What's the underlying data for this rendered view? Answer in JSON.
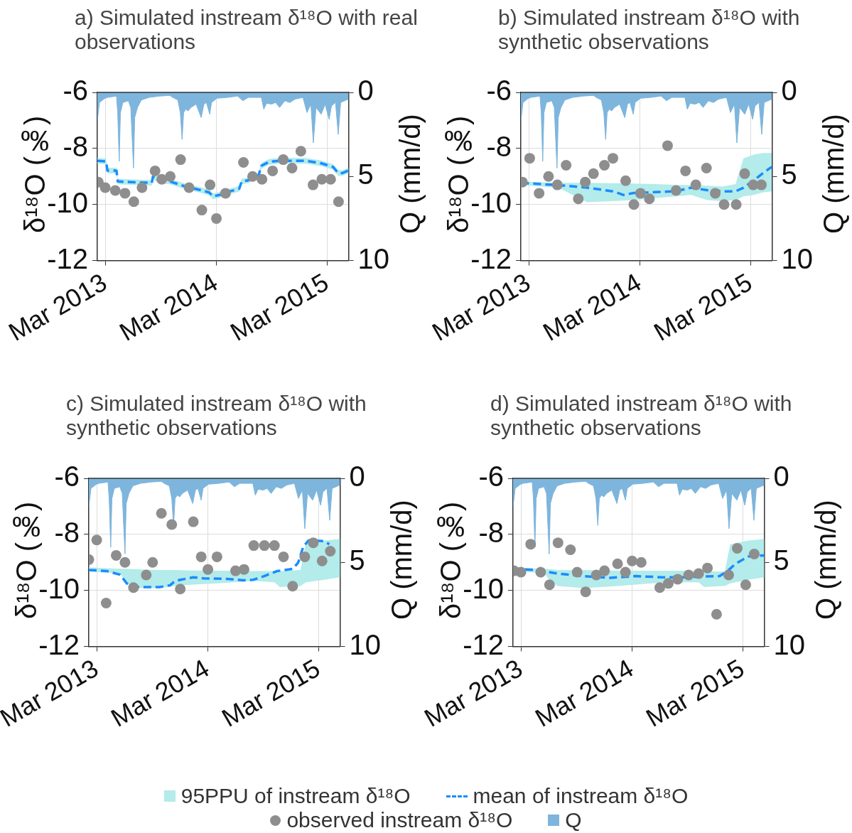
{
  "chart_data": [
    {
      "type": "line",
      "title": "a) Simulated instream δ¹⁸O with real observations",
      "ylabel": "δ¹⁸O (‰)",
      "y2label": "Q (mm/d)",
      "xlim": [
        "2013-02-03",
        "2015-05-11"
      ],
      "xticks": [
        {
          "value": "2013-03-01",
          "label": "Mar 2013"
        },
        {
          "value": "2014-03-01",
          "label": "Mar 2014"
        },
        {
          "value": "2015-03-01",
          "label": "Mar 2015"
        }
      ],
      "ylim": [
        -12,
        -6
      ],
      "yticks": [
        -12,
        -10,
        -8,
        -6
      ],
      "y2lim": [
        10,
        0
      ],
      "y2ticks": [
        0,
        5,
        10
      ],
      "grid": true,
      "series": [
        {
          "type": "area",
          "color": "#b3ecea",
          "values": [
            null,
            null,
            null,
            null,
            null,
            null,
            null,
            null,
            null,
            null,
            null,
            null,
            null,
            null,
            null,
            null,
            null,
            null,
            null,
            null,
            null,
            null,
            null,
            null,
            null,
            null,
            null,
            null,
            null
          ],
          "x": [
            "2013-02-03",
            "2013-03-04",
            "2013-03-08",
            "2013-04-07",
            "2013-04-11",
            "2013-08-01",
            "2013-08-05",
            "2013-08-27",
            "2013-09-30",
            "2013-11-21",
            "2014-01-11",
            "2014-02-06",
            "2014-02-19",
            "2014-03-12",
            "2014-04-16",
            "2014-05-16",
            "2014-05-24",
            "2014-06-15",
            "2014-07-19",
            "2014-07-28",
            "2014-08-22",
            "2014-09-26",
            "2014-11-08",
            "2014-12-21",
            "2015-02-10",
            "2015-03-21",
            "2015-04-07",
            "2015-04-20",
            "2015-05-11"
          ],
          "upper": [
            -8.34,
            -8.36,
            -8.69,
            -8.69,
            -9.08,
            -9.13,
            -8.91,
            -9.04,
            -9.08,
            -9.26,
            -9.39,
            -9.47,
            -9.61,
            -9.56,
            -9.43,
            -9.34,
            -9.08,
            -9.04,
            -8.86,
            -8.52,
            -8.38,
            -8.34,
            -8.34,
            -8.34,
            -8.43,
            -8.56,
            -8.78,
            -8.78,
            -8.69
          ],
          "lower": [
            -8.54,
            -8.56,
            -8.89,
            -8.89,
            -9.28,
            -9.33,
            -9.11,
            -9.24,
            -9.28,
            -9.46,
            -9.59,
            -9.67,
            -9.81,
            -9.76,
            -9.63,
            -9.54,
            -9.28,
            -9.24,
            -9.06,
            -8.72,
            -8.58,
            -8.54,
            -8.54,
            -8.54,
            -8.63,
            -8.76,
            -8.98,
            -8.98,
            -8.89
          ]
        },
        {
          "type": "line",
          "color": "#1a8cff",
          "line_style": "dashed",
          "x": [
            "2013-02-03",
            "2013-03-04",
            "2013-03-08",
            "2013-04-07",
            "2013-04-11",
            "2013-08-01",
            "2013-08-05",
            "2013-08-27",
            "2013-09-30",
            "2013-11-21",
            "2014-01-11",
            "2014-02-06",
            "2014-02-19",
            "2014-03-12",
            "2014-04-16",
            "2014-05-16",
            "2014-05-24",
            "2014-06-15",
            "2014-07-19",
            "2014-07-28",
            "2014-08-22",
            "2014-09-26",
            "2014-11-08",
            "2014-12-21",
            "2015-02-10",
            "2015-03-21",
            "2015-04-07",
            "2015-04-20",
            "2015-05-11"
          ],
          "values": [
            -8.44,
            -8.46,
            -8.79,
            -8.79,
            -9.18,
            -9.23,
            -9.01,
            -9.14,
            -9.18,
            -9.36,
            -9.49,
            -9.57,
            -9.71,
            -9.66,
            -9.53,
            -9.44,
            -9.18,
            -9.14,
            -8.96,
            -8.62,
            -8.48,
            -8.44,
            -8.44,
            -8.44,
            -8.53,
            -8.66,
            -8.88,
            -8.88,
            -8.79
          ]
        },
        {
          "type": "scatter",
          "color": "#8e8e8e",
          "marker": "circle",
          "x": [
            "2013-02-06",
            "2013-03-01",
            "2013-04-03",
            "2013-05-05",
            "2013-06-03",
            "2013-06-30",
            "2013-08-12",
            "2013-09-03",
            "2013-10-01",
            "2013-11-04",
            "2013-12-02",
            "2014-01-13",
            "2014-02-09",
            "2014-03-02",
            "2014-04-01",
            "2014-05-30",
            "2014-06-29",
            "2014-07-30",
            "2014-09-03",
            "2014-10-08",
            "2014-11-06",
            "2014-12-05",
            "2015-01-14",
            "2015-02-12",
            "2015-03-13",
            "2015-04-08"
          ],
          "values": [
            -9.2,
            -9.4,
            -9.5,
            -9.6,
            -9.9,
            -9.4,
            -8.8,
            -9.1,
            -9.0,
            -8.4,
            -9.4,
            -10.2,
            -9.3,
            -10.5,
            -9.6,
            -8.5,
            -9.0,
            -9.1,
            -8.8,
            -8.4,
            -8.7,
            -8.1,
            -9.3,
            -9.1,
            -9.1,
            -9.9
          ]
        },
        {
          "type": "area",
          "axis": "y2",
          "color": "#7db5dd",
          "x": [
            "2013-02-03",
            "2013-02-10",
            "2013-02-27",
            "2013-03-08",
            "2013-04-07",
            "2013-04-11",
            "2013-04-16",
            "2013-04-20",
            "2013-04-28",
            "2013-05-16",
            "2013-05-24",
            "2013-06-02",
            "2013-06-06",
            "2013-06-15",
            "2013-06-28",
            "2013-07-23",
            "2013-08-27",
            "2013-09-30",
            "2013-10-09",
            "2013-10-26",
            "2013-11-03",
            "2013-11-09",
            "2013-11-14",
            "2013-11-21",
            "2013-11-29",
            "2013-12-08",
            "2013-12-25",
            "2014-01-11",
            "2014-01-20",
            "2014-01-28",
            "2014-02-08",
            "2014-02-14",
            "2014-03-04",
            "2014-04-07",
            "2014-05-11",
            "2014-05-28",
            "2014-06-15",
            "2014-07-28",
            "2014-08-05",
            "2014-08-14",
            "2014-08-31",
            "2014-09-13",
            "2014-09-26",
            "2014-10-13",
            "2014-10-30",
            "2014-11-16",
            "2014-12-12",
            "2014-12-25",
            "2015-01-07",
            "2015-01-15",
            "2015-01-24",
            "2015-02-10",
            "2015-02-23",
            "2015-03-08",
            "2015-03-16",
            "2015-03-29",
            "2015-04-07",
            "2015-04-15",
            "2015-04-28",
            "2015-05-11"
          ],
          "values": [
            1.7,
            0.6,
            0.36,
            0.3,
            0.22,
            1.2,
            4.1,
            1.2,
            0.6,
            0.5,
            0.9,
            4.5,
            1.5,
            0.9,
            0.45,
            0.3,
            0.22,
            0.18,
            0.3,
            0.45,
            1.2,
            2.8,
            1.2,
            1.0,
            1.1,
            0.9,
            0.7,
            1.5,
            0.7,
            0.6,
            1.3,
            0.6,
            0.35,
            0.3,
            0.22,
            0.5,
            0.3,
            0.3,
            1.0,
            0.65,
            0.7,
            0.6,
            0.9,
            0.5,
            0.6,
            0.4,
            0.3,
            1.2,
            0.7,
            3.0,
            0.9,
            1.3,
            0.7,
            1.6,
            0.8,
            0.6,
            2.5,
            0.6,
            0.5,
            0.4
          ]
        }
      ]
    },
    {
      "type": "line",
      "title": "b) Simulated instream δ¹⁸O with synthetic observations",
      "ylabel": "δ¹⁸O (‰)",
      "y2label": "Q (mm/d)",
      "xlim": [
        "2013-02-03",
        "2015-05-11"
      ],
      "xticks": [
        {
          "value": "2013-03-01",
          "label": "Mar 2013"
        },
        {
          "value": "2014-03-01",
          "label": "Mar 2014"
        },
        {
          "value": "2015-03-01",
          "label": "Mar 2015"
        }
      ],
      "ylim": [
        -12,
        -6
      ],
      "yticks": [
        -12,
        -10,
        -8,
        -6
      ],
      "y2lim": [
        10,
        0
      ],
      "y2ticks": [
        0,
        5,
        10
      ],
      "grid": true,
      "series": [
        {
          "type": "area",
          "color": "#b3ecea",
          "values": [
            null,
            null,
            null,
            null,
            null,
            null,
            null,
            null,
            null,
            null,
            null,
            null,
            null,
            null,
            null,
            null
          ],
          "x": [
            "2013-02-04",
            "2013-06-06",
            "2013-09-09",
            "2013-12-03",
            "2014-01-07",
            "2014-02-10",
            "2014-04-20",
            "2014-06-28",
            "2014-08-18",
            "2014-10-09",
            "2014-11-29",
            "2015-01-11",
            "2015-02-06",
            "2015-03-12",
            "2015-04-11",
            "2015-05-10"
          ],
          "upper": [
            -9.18,
            -9.23,
            -9.23,
            -9.24,
            -9.24,
            -9.25,
            -9.27,
            -9.3,
            -9.31,
            -9.33,
            -9.36,
            -9.27,
            -8.35,
            -8.22,
            -8.16,
            -8.16
          ],
          "lower": [
            -9.31,
            -9.4,
            -9.92,
            -9.88,
            -9.86,
            -9.84,
            -9.77,
            -9.71,
            -9.66,
            -9.84,
            -9.88,
            -9.84,
            -9.71,
            -9.66,
            -9.57,
            -9.53
          ]
        },
        {
          "type": "line",
          "color": "#1a8cff",
          "line_style": "dashed",
          "x": [
            "2013-02-04",
            "2013-06-06",
            "2013-09-09",
            "2013-12-03",
            "2014-01-07",
            "2014-02-10",
            "2014-04-20",
            "2014-06-28",
            "2014-08-18",
            "2014-10-09",
            "2014-11-29",
            "2015-01-11",
            "2015-02-06",
            "2015-03-12",
            "2015-04-11",
            "2015-05-10"
          ],
          "values": [
            -9.23,
            -9.31,
            -9.4,
            -9.53,
            -9.66,
            -9.59,
            -9.56,
            -9.53,
            -9.4,
            -9.49,
            -9.53,
            -9.53,
            -9.4,
            -9.14,
            -8.88,
            -8.66
          ]
        },
        {
          "type": "scatter",
          "color": "#8e8e8e",
          "marker": "circle",
          "x": [
            "2013-02-08",
            "2013-03-04",
            "2013-04-04",
            "2013-05-05",
            "2013-06-03",
            "2013-07-02",
            "2013-08-11",
            "2013-09-03",
            "2013-09-30",
            "2013-11-05",
            "2013-12-03",
            "2014-01-14",
            "2014-02-10",
            "2014-03-04",
            "2014-04-02",
            "2014-06-01",
            "2014-06-29",
            "2014-07-30",
            "2014-09-02",
            "2014-10-07",
            "2014-11-05",
            "2014-12-04",
            "2015-01-13",
            "2015-02-10",
            "2015-03-10",
            "2015-04-06"
          ],
          "values": [
            -9.2,
            -8.35,
            -9.6,
            -9.0,
            -9.3,
            -8.6,
            -9.8,
            -9.2,
            -8.9,
            -8.6,
            -8.35,
            -9.15,
            -10.0,
            -9.6,
            -9.8,
            -7.9,
            -9.5,
            -8.8,
            -9.3,
            -8.7,
            -9.6,
            -10.0,
            -10.0,
            -8.9,
            -9.3,
            -9.3
          ]
        },
        {
          "type": "area",
          "axis": "y2",
          "color": "#7db5dd",
          "x": [
            "2013-02-03",
            "2013-02-10",
            "2013-02-27",
            "2013-03-08",
            "2013-04-07",
            "2013-04-11",
            "2013-04-16",
            "2013-04-20",
            "2013-04-28",
            "2013-05-16",
            "2013-05-24",
            "2013-06-02",
            "2013-06-06",
            "2013-06-15",
            "2013-06-28",
            "2013-07-23",
            "2013-08-27",
            "2013-09-30",
            "2013-10-09",
            "2013-10-26",
            "2013-11-03",
            "2013-11-09",
            "2013-11-14",
            "2013-11-21",
            "2013-11-29",
            "2013-12-08",
            "2013-12-25",
            "2014-01-11",
            "2014-01-20",
            "2014-01-28",
            "2014-02-08",
            "2014-02-14",
            "2014-03-04",
            "2014-04-07",
            "2014-05-11",
            "2014-05-28",
            "2014-06-15",
            "2014-07-28",
            "2014-08-05",
            "2014-08-14",
            "2014-08-31",
            "2014-09-13",
            "2014-09-26",
            "2014-10-13",
            "2014-10-30",
            "2014-11-16",
            "2014-12-12",
            "2014-12-25",
            "2015-01-07",
            "2015-01-15",
            "2015-01-24",
            "2015-02-10",
            "2015-02-23",
            "2015-03-08",
            "2015-03-16",
            "2015-03-29",
            "2015-04-07",
            "2015-04-15",
            "2015-04-28",
            "2015-05-11"
          ],
          "values": [
            1.7,
            0.6,
            0.36,
            0.3,
            0.22,
            1.2,
            4.1,
            1.2,
            0.6,
            0.5,
            0.9,
            4.5,
            1.5,
            0.9,
            0.45,
            0.3,
            0.22,
            0.18,
            0.3,
            0.45,
            1.2,
            2.8,
            1.2,
            1.0,
            1.1,
            0.9,
            0.7,
            1.5,
            0.7,
            0.6,
            1.3,
            0.6,
            0.35,
            0.3,
            0.22,
            0.5,
            0.3,
            0.3,
            1.0,
            0.65,
            0.7,
            0.6,
            0.9,
            0.5,
            0.6,
            0.4,
            0.3,
            1.2,
            0.7,
            3.0,
            0.9,
            1.3,
            0.7,
            1.6,
            0.8,
            0.6,
            2.5,
            0.6,
            0.5,
            0.4
          ]
        }
      ]
    },
    {
      "type": "line",
      "title": "c) Simulated instream δ¹⁸O with synthetic observations",
      "ylabel": "δ¹⁸O (‰)",
      "y2label": "Q (mm/d)",
      "xlim": [
        "2013-02-03",
        "2015-05-11"
      ],
      "xticks": [
        {
          "value": "2013-03-01",
          "label": "Mar 2013"
        },
        {
          "value": "2014-03-01",
          "label": "Mar 2014"
        },
        {
          "value": "2015-03-01",
          "label": "Mar 2015"
        }
      ],
      "ylim": [
        -12,
        -6
      ],
      "yticks": [
        -12,
        -10,
        -8,
        -6
      ],
      "y2lim": [
        10,
        0
      ],
      "y2ticks": [
        0,
        5,
        10
      ],
      "grid": true,
      "series": [
        {
          "type": "area",
          "color": "#b3ecea",
          "values": [
            null,
            null,
            null,
            null,
            null,
            null,
            null,
            null,
            null,
            null,
            null,
            null,
            null,
            null,
            null
          ],
          "x": [
            "2013-02-03",
            "2013-05-17",
            "2013-06-08",
            "2013-06-30",
            "2013-09-24",
            "2013-11-14",
            "2014-01-13",
            "2014-05-05",
            "2014-07-30",
            "2014-10-07",
            "2014-10-25",
            "2015-01-01",
            "2015-01-19",
            "2015-03-20",
            "2015-05-11"
          ],
          "upper": [
            -9.18,
            -9.23,
            -9.23,
            -9.24,
            -9.27,
            -9.27,
            -9.29,
            -9.3,
            -9.31,
            -9.31,
            -9.31,
            -9.27,
            -8.27,
            -8.22,
            -8.16
          ],
          "lower": [
            -9.33,
            -9.4,
            -9.75,
            -9.91,
            -9.92,
            -9.84,
            -9.79,
            -9.73,
            -9.66,
            -9.71,
            -9.88,
            -9.84,
            -9.71,
            -9.62,
            -9.53
          ]
        },
        {
          "type": "line",
          "color": "#1a8cff",
          "line_style": "dashed",
          "x": [
            "2013-02-03",
            "2013-04-04",
            "2013-05-17",
            "2013-06-08",
            "2013-06-30",
            "2013-09-24",
            "2013-10-28",
            "2013-11-14",
            "2014-01-13",
            "2014-02-17",
            "2014-05-05",
            "2014-06-26",
            "2014-07-30",
            "2014-09-03",
            "2014-10-16",
            "2014-12-07",
            "2014-12-24",
            "2015-01-10",
            "2015-01-27",
            "2015-03-20",
            "2015-04-06"
          ],
          "values": [
            -9.27,
            -9.31,
            -9.44,
            -9.75,
            -9.88,
            -9.88,
            -9.82,
            -9.66,
            -9.53,
            -9.57,
            -9.59,
            -9.64,
            -9.62,
            -9.49,
            -9.31,
            -9.23,
            -9.01,
            -8.44,
            -8.22,
            -8.24,
            -8.35
          ]
        },
        {
          "type": "scatter",
          "color": "#8e8e8e",
          "marker": "circle",
          "x": [
            "2013-02-03",
            "2013-03-01",
            "2013-04-01",
            "2013-05-04",
            "2013-06-02",
            "2013-06-30",
            "2013-08-11",
            "2013-09-01",
            "2013-09-30",
            "2013-11-03",
            "2013-12-01",
            "2014-01-13",
            "2014-02-08",
            "2014-03-02",
            "2014-04-01",
            "2014-06-01",
            "2014-06-29",
            "2014-07-31",
            "2014-09-04",
            "2014-10-07",
            "2014-11-06",
            "2014-12-06",
            "2015-01-15",
            "2015-02-12",
            "2015-03-13",
            "2015-04-09"
          ],
          "values": [
            -8.9,
            -8.2,
            -10.45,
            -8.75,
            -9.0,
            -9.9,
            -9.45,
            -9.0,
            -7.25,
            -7.65,
            -9.95,
            -7.55,
            -8.8,
            -9.25,
            -8.8,
            -9.3,
            -9.25,
            -8.4,
            -8.4,
            -8.4,
            -8.8,
            -9.85,
            -8.8,
            -8.3,
            -8.95,
            -8.6
          ]
        },
        {
          "type": "area",
          "axis": "y2",
          "color": "#7db5dd",
          "x": [
            "2013-02-03",
            "2013-02-10",
            "2013-02-27",
            "2013-03-08",
            "2013-04-07",
            "2013-04-11",
            "2013-04-16",
            "2013-04-20",
            "2013-04-28",
            "2013-05-16",
            "2013-05-24",
            "2013-06-02",
            "2013-06-06",
            "2013-06-15",
            "2013-06-28",
            "2013-07-23",
            "2013-08-27",
            "2013-09-30",
            "2013-10-09",
            "2013-10-26",
            "2013-11-03",
            "2013-11-09",
            "2013-11-14",
            "2013-11-21",
            "2013-11-29",
            "2013-12-08",
            "2013-12-25",
            "2014-01-11",
            "2014-01-20",
            "2014-01-28",
            "2014-02-08",
            "2014-02-14",
            "2014-03-04",
            "2014-04-07",
            "2014-05-11",
            "2014-05-28",
            "2014-06-15",
            "2014-07-28",
            "2014-08-05",
            "2014-08-14",
            "2014-08-31",
            "2014-09-13",
            "2014-09-26",
            "2014-10-13",
            "2014-10-30",
            "2014-11-16",
            "2014-12-12",
            "2014-12-25",
            "2015-01-07",
            "2015-01-15",
            "2015-01-24",
            "2015-02-10",
            "2015-02-23",
            "2015-03-08",
            "2015-03-16",
            "2015-03-29",
            "2015-04-07",
            "2015-04-15",
            "2015-04-28",
            "2015-05-11"
          ],
          "values": [
            1.7,
            0.6,
            0.36,
            0.3,
            0.22,
            1.2,
            4.1,
            1.2,
            0.6,
            0.5,
            0.9,
            4.5,
            1.5,
            0.9,
            0.45,
            0.3,
            0.22,
            0.18,
            0.3,
            0.45,
            1.2,
            2.8,
            1.2,
            1.0,
            1.1,
            0.9,
            0.7,
            1.5,
            0.7,
            0.6,
            1.3,
            0.6,
            0.35,
            0.3,
            0.22,
            0.5,
            0.3,
            0.3,
            1.0,
            0.65,
            0.7,
            0.6,
            0.9,
            0.5,
            0.6,
            0.4,
            0.3,
            1.2,
            0.7,
            3.0,
            0.9,
            1.3,
            0.7,
            1.6,
            0.8,
            0.6,
            2.5,
            0.6,
            0.5,
            0.4
          ]
        }
      ]
    },
    {
      "type": "line",
      "title": "d) Simulated instream δ¹⁸O with synthetic observations",
      "ylabel": "δ¹⁸O (‰)",
      "y2label": "Q (mm/d)",
      "xlim": [
        "2013-02-03",
        "2015-05-11"
      ],
      "xticks": [
        {
          "value": "2013-03-01",
          "label": "Mar 2013"
        },
        {
          "value": "2014-03-01",
          "label": "Mar 2014"
        },
        {
          "value": "2015-03-01",
          "label": "Mar 2015"
        }
      ],
      "ylim": [
        -12,
        -6
      ],
      "yticks": [
        -12,
        -10,
        -8,
        -6
      ],
      "y2lim": [
        10,
        0
      ],
      "y2ticks": [
        0,
        5,
        10
      ],
      "grid": true,
      "legend": "bottom",
      "series": [
        {
          "name": "95PPU of instream δ¹⁸O",
          "type": "area",
          "color": "#b3ecea",
          "values": [
            null,
            null,
            null,
            null,
            null,
            null,
            null,
            null,
            null,
            null,
            null,
            null,
            null,
            null
          ],
          "x": [
            "2013-02-03",
            "2013-05-17",
            "2013-06-08",
            "2013-06-30",
            "2013-09-24",
            "2014-01-13",
            "2014-05-05",
            "2014-07-30",
            "2014-10-07",
            "2014-10-25",
            "2015-01-01",
            "2015-01-19",
            "2015-03-20",
            "2015-05-11"
          ],
          "upper": [
            -9.18,
            -9.23,
            -9.24,
            -9.27,
            -9.27,
            -9.29,
            -9.3,
            -9.3,
            -9.31,
            -9.31,
            -9.33,
            -8.35,
            -8.22,
            -8.16
          ],
          "lower": [
            -9.31,
            -9.38,
            -9.71,
            -9.84,
            -9.92,
            -9.84,
            -9.75,
            -9.71,
            -9.71,
            -9.88,
            -9.84,
            -9.75,
            -9.62,
            -9.53
          ]
        },
        {
          "name": "mean of instream δ¹⁸O",
          "type": "line",
          "color": "#1a8cff",
          "line_style": "dashed",
          "x": [
            "2013-02-03",
            "2013-04-22",
            "2013-06-30",
            "2013-09-24",
            "2013-12-19",
            "2014-03-15",
            "2014-06-09",
            "2014-09-03",
            "2014-11-02",
            "2014-12-15",
            "2015-01-10",
            "2015-02-05",
            "2015-03-20",
            "2015-05-11"
          ],
          "values": [
            -9.23,
            -9.27,
            -9.4,
            -9.49,
            -9.55,
            -9.49,
            -9.53,
            -9.53,
            -9.5,
            -9.49,
            -9.31,
            -9.05,
            -8.79,
            -8.75
          ]
        },
        {
          "name": "observed instream δ¹⁸O",
          "type": "scatter",
          "color": "#8e8e8e",
          "marker": "circle",
          "x": [
            "2013-02-06",
            "2013-03-01",
            "2013-04-02",
            "2013-05-05",
            "2013-06-03",
            "2013-07-01",
            "2013-08-11",
            "2013-09-02",
            "2013-09-30",
            "2013-11-04",
            "2013-12-01",
            "2014-01-13",
            "2014-02-08",
            "2014-03-02",
            "2014-04-01",
            "2014-06-01",
            "2014-06-29",
            "2014-07-30",
            "2014-09-04",
            "2014-10-07",
            "2014-11-05",
            "2014-12-05",
            "2015-01-14",
            "2015-02-11",
            "2015-03-11",
            "2015-04-08"
          ],
          "values": [
            -9.3,
            -9.35,
            -8.35,
            -9.35,
            -9.8,
            -8.3,
            -8.55,
            -9.35,
            -10.05,
            -9.45,
            -9.3,
            -9.05,
            -9.35,
            -8.95,
            -9.0,
            -9.9,
            -9.75,
            -9.6,
            -9.45,
            -9.4,
            -9.2,
            -10.85,
            -9.45,
            -8.5,
            -9.8,
            -8.7
          ]
        },
        {
          "name": "Q",
          "type": "area",
          "axis": "y2",
          "color": "#7db5dd",
          "x": [
            "2013-02-03",
            "2013-02-10",
            "2013-02-27",
            "2013-03-08",
            "2013-04-07",
            "2013-04-11",
            "2013-04-16",
            "2013-04-20",
            "2013-04-28",
            "2013-05-16",
            "2013-05-24",
            "2013-06-02",
            "2013-06-06",
            "2013-06-15",
            "2013-06-28",
            "2013-07-23",
            "2013-08-27",
            "2013-09-30",
            "2013-10-09",
            "2013-10-26",
            "2013-11-03",
            "2013-11-09",
            "2013-11-14",
            "2013-11-21",
            "2013-11-29",
            "2013-12-08",
            "2013-12-25",
            "2014-01-11",
            "2014-01-20",
            "2014-01-28",
            "2014-02-08",
            "2014-02-14",
            "2014-03-04",
            "2014-04-07",
            "2014-05-11",
            "2014-05-28",
            "2014-06-15",
            "2014-07-28",
            "2014-08-05",
            "2014-08-14",
            "2014-08-31",
            "2014-09-13",
            "2014-09-26",
            "2014-10-13",
            "2014-10-30",
            "2014-11-16",
            "2014-12-12",
            "2014-12-25",
            "2015-01-07",
            "2015-01-15",
            "2015-01-24",
            "2015-02-10",
            "2015-02-23",
            "2015-03-08",
            "2015-03-16",
            "2015-03-29",
            "2015-04-07",
            "2015-04-15",
            "2015-04-28",
            "2015-05-11"
          ],
          "values": [
            1.7,
            0.6,
            0.36,
            0.3,
            0.22,
            1.2,
            4.1,
            1.2,
            0.6,
            0.5,
            0.9,
            4.5,
            1.5,
            0.9,
            0.45,
            0.3,
            0.22,
            0.18,
            0.3,
            0.45,
            1.2,
            2.8,
            1.2,
            1.0,
            1.1,
            0.9,
            0.7,
            1.5,
            0.7,
            0.6,
            1.3,
            0.6,
            0.35,
            0.3,
            0.22,
            0.5,
            0.3,
            0.3,
            1.0,
            0.65,
            0.7,
            0.6,
            0.9,
            0.5,
            0.6,
            0.4,
            0.3,
            1.2,
            0.7,
            3.0,
            0.9,
            1.3,
            0.7,
            1.6,
            0.8,
            0.6,
            2.5,
            0.6,
            0.5,
            0.4
          ]
        }
      ]
    }
  ]
}
